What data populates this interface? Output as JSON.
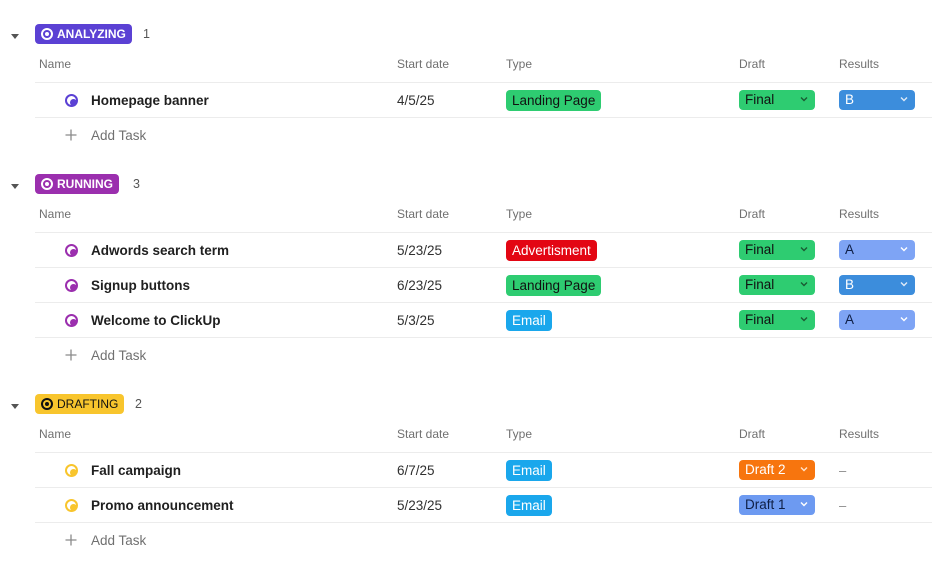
{
  "columns": {
    "name": "Name",
    "start_date": "Start date",
    "type": "Type",
    "draft": "Draft",
    "results": "Results"
  },
  "add_task_label": "Add Task",
  "empty_value": "–",
  "colors": {
    "analyzing": "#5b41d4",
    "running": "#9b2fae",
    "drafting": "#f8c52d",
    "landing_page": "#2ecc71",
    "advertisment": "#e30613",
    "email": "#1aa7ec",
    "final": "#2ecc71",
    "draft_2": "#f7750e",
    "draft_1": "#6d9af1",
    "result_a": "#7ea4f5",
    "result_b": "#3c8ddc"
  },
  "groups": [
    {
      "status": "ANALYZING",
      "count": "1",
      "tasks": [
        {
          "name": "Homepage banner",
          "start_date": "4/5/25",
          "type": "Landing Page",
          "draft": "Final",
          "results": "B"
        }
      ]
    },
    {
      "status": "RUNNING",
      "count": "3",
      "tasks": [
        {
          "name": "Adwords search term",
          "start_date": "5/23/25",
          "type": "Advertisment",
          "draft": "Final",
          "results": "A"
        },
        {
          "name": "Signup buttons",
          "start_date": "6/23/25",
          "type": "Landing Page",
          "draft": "Final",
          "results": "B"
        },
        {
          "name": "Welcome to ClickUp",
          "start_date": "5/3/25",
          "type": "Email",
          "draft": "Final",
          "results": "A"
        }
      ]
    },
    {
      "status": "DRAFTING",
      "count": "2",
      "tasks": [
        {
          "name": "Fall campaign",
          "start_date": "6/7/25",
          "type": "Email",
          "draft": "Draft 2",
          "results": ""
        },
        {
          "name": "Promo announcement",
          "start_date": "5/23/25",
          "type": "Email",
          "draft": "Draft 1",
          "results": ""
        }
      ]
    }
  ]
}
